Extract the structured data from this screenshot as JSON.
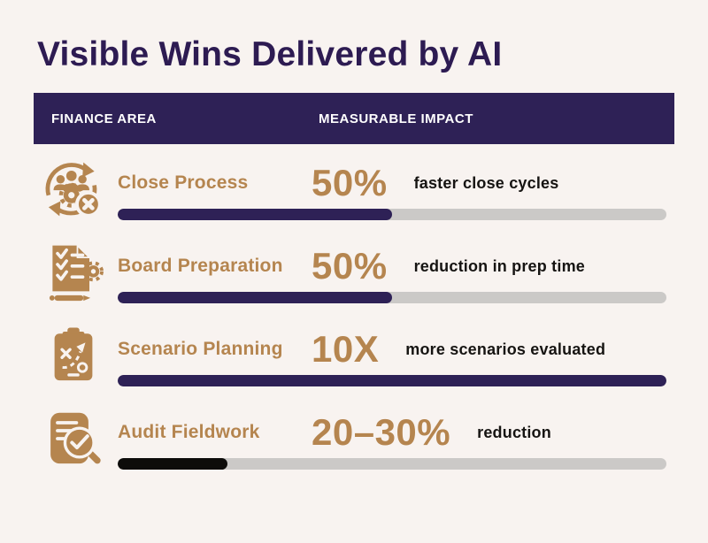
{
  "title": "Visible Wins Delivered by AI",
  "table": {
    "headers": [
      "FINANCE AREA",
      "MEASURABLE IMPACT"
    ]
  },
  "rows": [
    {
      "icon": "close-process-cycle-icon",
      "area": "Close Process",
      "stat": "50%",
      "desc": "faster close cycles",
      "progress_pct": 50,
      "fill_color": "#2e2156"
    },
    {
      "icon": "board-preparation-checklist-icon",
      "area": "Board Preparation",
      "stat": "50%",
      "desc": "reduction in prep time",
      "progress_pct": 50,
      "fill_color": "#2e2156"
    },
    {
      "icon": "scenario-planning-clipboard-icon",
      "area": "Scenario Planning",
      "stat": "10X",
      "desc": "more scenarios evaluated",
      "progress_pct": 100,
      "fill_color": "#2e2156"
    },
    {
      "icon": "audit-fieldwork-magnifier-icon",
      "area": "Audit Fieldwork",
      "stat": "20–30%",
      "desc": "reduction",
      "progress_pct": 20,
      "fill_color": "#0d0c0a"
    }
  ],
  "colors": {
    "background": "#f8f3f0",
    "primary_purple": "#2e2156",
    "accent_gold": "#b5854f",
    "track_gray": "#cbc9c7",
    "audit_bar_black": "#0d0c0a",
    "header_text": "#ffffff",
    "description_text": "#161412"
  },
  "chart_data": {
    "type": "bar",
    "orientation": "horizontal",
    "title": "Visible Wins Delivered by AI",
    "categories": [
      "Close Process",
      "Board Preparation",
      "Scenario Planning",
      "Audit Fieldwork"
    ],
    "series": [
      {
        "name": "progress_fill_percent",
        "values": [
          50,
          50,
          100,
          20
        ]
      }
    ],
    "stat_labels": [
      "50%",
      "50%",
      "10X",
      "20–30%"
    ],
    "stat_descriptions": [
      "faster close cycles",
      "reduction in prep time",
      "more scenarios evaluated",
      "reduction"
    ],
    "xlim": [
      0,
      100
    ],
    "grid": false,
    "legend": false
  }
}
